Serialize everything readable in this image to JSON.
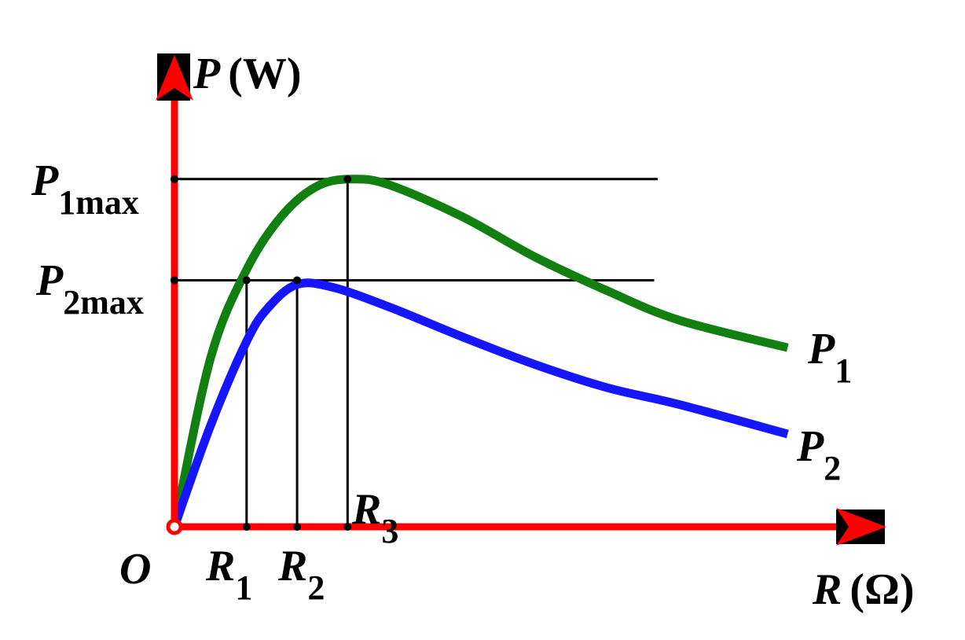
{
  "chart_data": {
    "type": "line",
    "xlabel": {
      "var": "R",
      "unit": "(Ω)"
    },
    "ylabel": {
      "var": "P",
      "unit": "(W)"
    },
    "origin_label": "O",
    "ylim": [
      0,
      1.0
    ],
    "xlim": [
      0,
      10
    ],
    "series": [
      {
        "name": "P",
        "subscript": "1",
        "color": "#118011",
        "x": [
          0,
          0.5,
          1.0,
          1.5,
          2.0,
          2.5,
          3.0,
          4.0,
          5.0,
          6.0,
          7.0,
          8.5
        ],
        "y": [
          0,
          0.4,
          0.61,
          0.74,
          0.81,
          0.825,
          0.81,
          0.735,
          0.64,
          0.56,
          0.49,
          0.425
        ]
      },
      {
        "name": "P",
        "subscript": "2",
        "color": "#1515ff",
        "x": [
          0,
          0.5,
          1.0,
          1.3,
          1.7,
          2.2,
          3.0,
          4.0,
          5.0,
          6.0,
          7.0,
          8.5
        ],
        "y": [
          0,
          0.24,
          0.44,
          0.52,
          0.575,
          0.568,
          0.52,
          0.45,
          0.385,
          0.33,
          0.29,
          0.22
        ]
      }
    ],
    "reference_lines": {
      "horizontal": [
        {
          "y": 0.825,
          "label": "P",
          "subscript": "1max",
          "x_end": 6.7
        },
        {
          "y": 0.585,
          "label": "P",
          "subscript": "2max",
          "x_end": 6.65
        }
      ],
      "vertical": [
        {
          "x": 1.0,
          "y_top": 0.585,
          "label": "R",
          "subscript": "1"
        },
        {
          "x": 1.7,
          "y_top": 0.585,
          "label": "R",
          "subscript": "2"
        },
        {
          "x": 2.4,
          "y_top": 0.825,
          "label": "R",
          "subscript": "3"
        }
      ]
    },
    "axis_color": "#ff0000",
    "grid": false
  }
}
